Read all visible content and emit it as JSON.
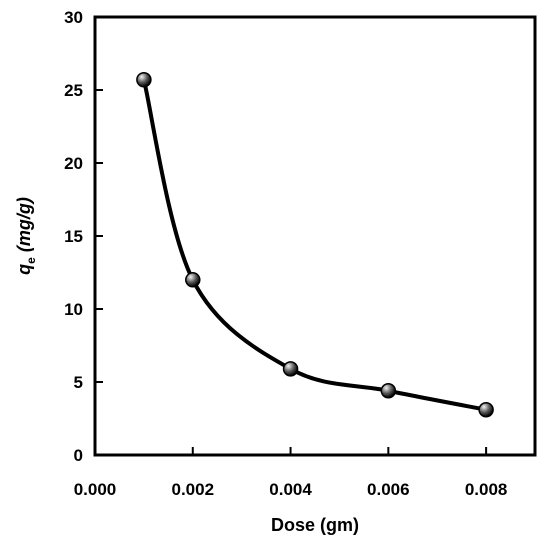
{
  "chart_data": {
    "type": "line",
    "x": [
      0.001,
      0.002,
      0.004,
      0.006,
      0.008
    ],
    "series": [
      {
        "values": [
          25.7,
          12.0,
          5.9,
          4.4,
          3.1
        ]
      }
    ],
    "xlabel": "Dose (gm)",
    "ylabel": {
      "main": "q",
      "subscript": "e",
      "unit": " (mg/g)"
    },
    "xlim": [
      0.0,
      0.009
    ],
    "ylim": [
      0,
      30
    ],
    "xticks": [
      0.0,
      0.002,
      0.004,
      0.006,
      0.008
    ],
    "xtick_labels": [
      "0.000",
      "0.002",
      "0.004",
      "0.006",
      "0.008"
    ],
    "yticks": [
      0,
      5,
      10,
      15,
      20,
      25,
      30
    ],
    "ytick_labels": [
      "0",
      "5",
      "10",
      "15",
      "20",
      "25",
      "30"
    ],
    "grid": false,
    "legend": "none",
    "colors": {
      "line": "#000000",
      "marker_fill": "#5a5a5a",
      "marker_highlight": "#f2f2f2",
      "axis": "#000000"
    }
  }
}
